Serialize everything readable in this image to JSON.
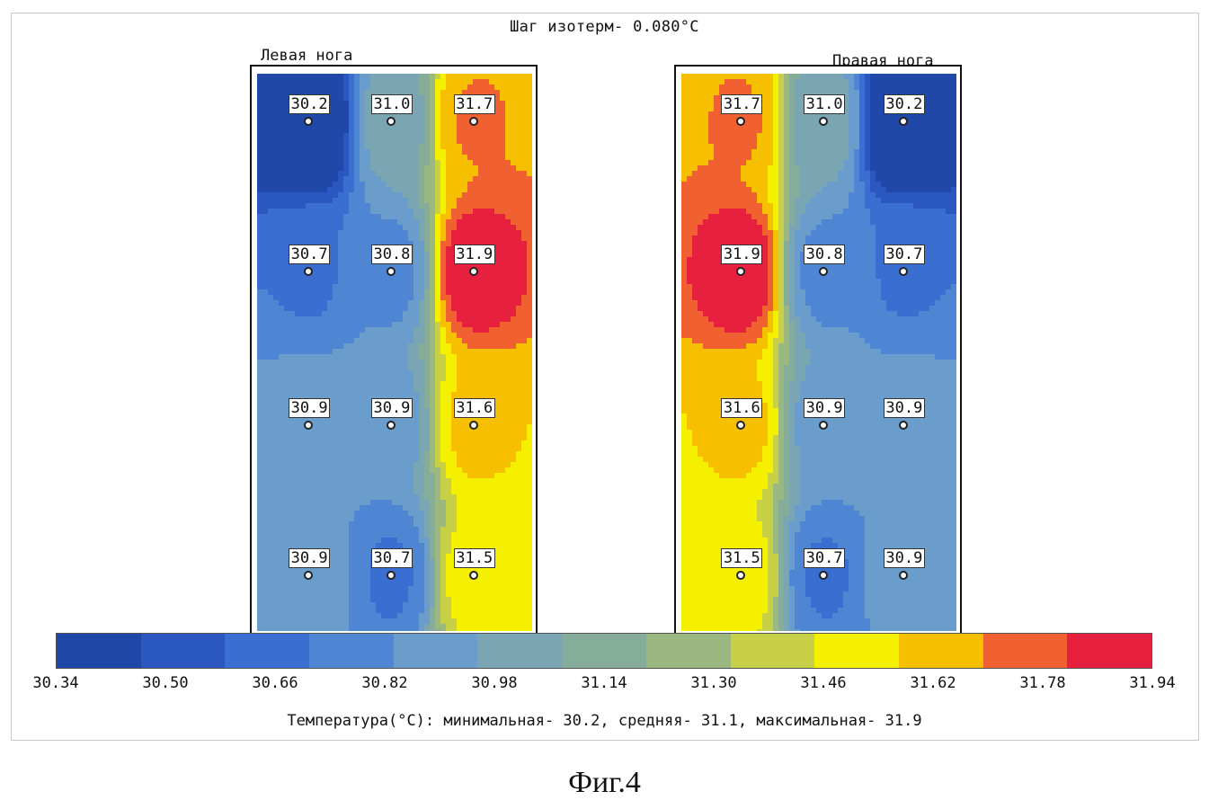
{
  "title": "Шаг изотерм- 0.080°C",
  "left_label": "Левая нога",
  "right_label": "Правая нога",
  "stats_line": "Температура(°C): минимальная-   30.2,  средняя-   31.1,  максимальная-   31.9",
  "figure_caption": "Фиг.4",
  "chart_data": {
    "type": "heatmap",
    "isotherm_step_c": 0.08,
    "left_foot_readings": [
      [
        30.2,
        31.0,
        31.7
      ],
      [
        30.7,
        30.8,
        31.9
      ],
      [
        30.9,
        30.9,
        31.6
      ],
      [
        30.9,
        30.7,
        31.5
      ]
    ],
    "right_foot_readings": [
      [
        31.7,
        31.0,
        30.2
      ],
      [
        31.9,
        30.8,
        30.7
      ],
      [
        31.6,
        30.9,
        30.9
      ],
      [
        31.5,
        30.7,
        30.9
      ]
    ],
    "colorbar": {
      "min": 30.34,
      "max": 31.94,
      "ticks": [
        "30.34",
        "30.50",
        "30.66",
        "30.82",
        "30.98",
        "31.14",
        "31.30",
        "31.46",
        "31.62",
        "31.78",
        "31.94"
      ],
      "colors": [
        "#1f48a8",
        "#2a58c0",
        "#3a6ed0",
        "#4f86d4",
        "#6a9ccc",
        "#7aa6b4",
        "#86ad9a",
        "#9ab880",
        "#c8d048",
        "#f4f000",
        "#f6c000",
        "#f06030",
        "#e82040"
      ]
    },
    "stats": {
      "min": 30.2,
      "mean": 31.1,
      "max": 31.9
    }
  }
}
